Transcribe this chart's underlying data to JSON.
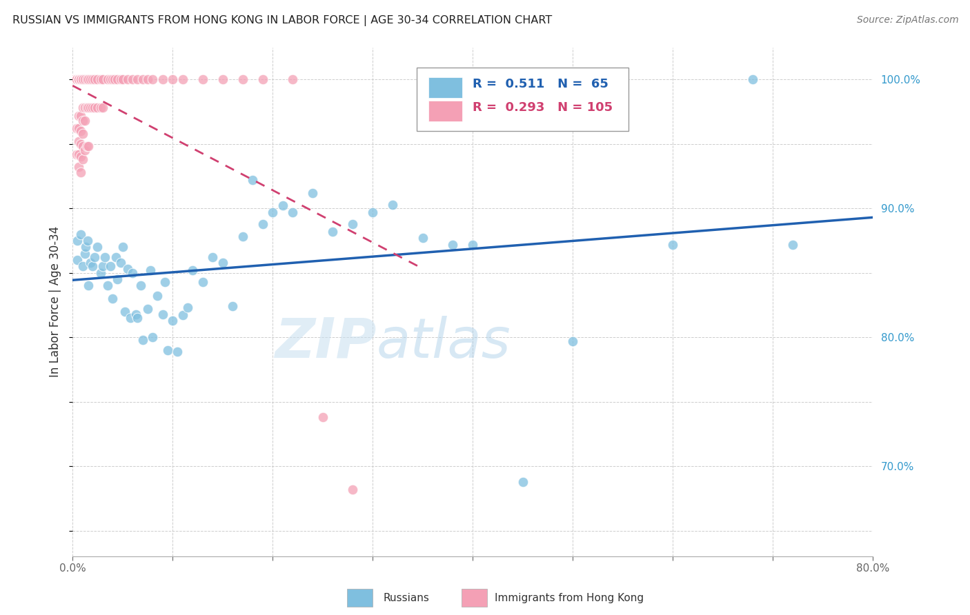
{
  "title": "RUSSIAN VS IMMIGRANTS FROM HONG KONG IN LABOR FORCE | AGE 30-34 CORRELATION CHART",
  "source": "Source: ZipAtlas.com",
  "ylabel": "In Labor Force | Age 30-34",
  "watermark": "ZIPatlas",
  "xlim": [
    0.0,
    0.8
  ],
  "ylim": [
    0.63,
    1.025
  ],
  "R_blue": 0.511,
  "N_blue": 65,
  "R_pink": 0.293,
  "N_pink": 105,
  "blue_color": "#7fbfdf",
  "pink_color": "#f4a0b5",
  "trendline_blue_color": "#2060b0",
  "trendline_pink_color": "#d04070",
  "blue_scatter_x": [
    0.005,
    0.005,
    0.008,
    0.01,
    0.012,
    0.013,
    0.015,
    0.016,
    0.018,
    0.02,
    0.022,
    0.025,
    0.028,
    0.03,
    0.032,
    0.035,
    0.038,
    0.04,
    0.043,
    0.045,
    0.048,
    0.05,
    0.052,
    0.055,
    0.058,
    0.06,
    0.063,
    0.065,
    0.068,
    0.07,
    0.075,
    0.078,
    0.08,
    0.085,
    0.09,
    0.092,
    0.095,
    0.1,
    0.105,
    0.11,
    0.115,
    0.12,
    0.13,
    0.14,
    0.15,
    0.16,
    0.17,
    0.18,
    0.19,
    0.2,
    0.21,
    0.22,
    0.24,
    0.26,
    0.28,
    0.3,
    0.32,
    0.35,
    0.38,
    0.4,
    0.45,
    0.5,
    0.6,
    0.68,
    0.72
  ],
  "blue_scatter_y": [
    0.86,
    0.875,
    0.88,
    0.855,
    0.865,
    0.87,
    0.875,
    0.84,
    0.858,
    0.855,
    0.862,
    0.87,
    0.85,
    0.855,
    0.862,
    0.84,
    0.855,
    0.83,
    0.862,
    0.845,
    0.858,
    0.87,
    0.82,
    0.853,
    0.815,
    0.85,
    0.818,
    0.815,
    0.84,
    0.798,
    0.822,
    0.852,
    0.8,
    0.832,
    0.818,
    0.843,
    0.79,
    0.813,
    0.789,
    0.817,
    0.823,
    0.852,
    0.843,
    0.862,
    0.858,
    0.824,
    0.878,
    0.922,
    0.888,
    0.897,
    0.902,
    0.897,
    0.912,
    0.882,
    0.888,
    0.897,
    0.903,
    0.877,
    0.872,
    0.872,
    0.688,
    0.797,
    0.872,
    1.0,
    0.872
  ],
  "pink_scatter_x": [
    0.002,
    0.002,
    0.002,
    0.002,
    0.002,
    0.002,
    0.002,
    0.002,
    0.002,
    0.002,
    0.002,
    0.002,
    0.002,
    0.002,
    0.002,
    0.002,
    0.002,
    0.002,
    0.002,
    0.002,
    0.004,
    0.004,
    0.004,
    0.004,
    0.004,
    0.004,
    0.004,
    0.004,
    0.004,
    0.004,
    0.004,
    0.004,
    0.004,
    0.004,
    0.006,
    0.006,
    0.006,
    0.006,
    0.006,
    0.006,
    0.006,
    0.006,
    0.006,
    0.006,
    0.006,
    0.008,
    0.008,
    0.008,
    0.008,
    0.008,
    0.008,
    0.008,
    0.008,
    0.01,
    0.01,
    0.01,
    0.01,
    0.01,
    0.01,
    0.01,
    0.012,
    0.012,
    0.012,
    0.012,
    0.014,
    0.014,
    0.014,
    0.016,
    0.016,
    0.016,
    0.018,
    0.018,
    0.02,
    0.02,
    0.022,
    0.022,
    0.025,
    0.025,
    0.028,
    0.028,
    0.03,
    0.03,
    0.035,
    0.038,
    0.04,
    0.042,
    0.045,
    0.048,
    0.05,
    0.055,
    0.06,
    0.065,
    0.07,
    0.075,
    0.08,
    0.09,
    0.1,
    0.11,
    0.13,
    0.15,
    0.17,
    0.19,
    0.22,
    0.25,
    0.28
  ],
  "pink_scatter_y": [
    1.0,
    1.0,
    1.0,
    1.0,
    1.0,
    1.0,
    1.0,
    1.0,
    1.0,
    1.0,
    1.0,
    1.0,
    1.0,
    1.0,
    1.0,
    1.0,
    1.0,
    1.0,
    1.0,
    1.0,
    1.0,
    1.0,
    1.0,
    1.0,
    1.0,
    1.0,
    1.0,
    1.0,
    1.0,
    1.0,
    1.0,
    1.0,
    0.962,
    0.942,
    1.0,
    1.0,
    1.0,
    1.0,
    1.0,
    1.0,
    0.972,
    0.962,
    0.952,
    0.942,
    0.932,
    1.0,
    1.0,
    1.0,
    0.972,
    0.96,
    0.95,
    0.94,
    0.928,
    1.0,
    1.0,
    0.978,
    0.968,
    0.958,
    0.948,
    0.938,
    1.0,
    0.978,
    0.968,
    0.945,
    1.0,
    0.978,
    0.948,
    1.0,
    0.978,
    0.948,
    1.0,
    0.978,
    1.0,
    0.978,
    1.0,
    0.978,
    1.0,
    0.978,
    1.0,
    0.978,
    1.0,
    0.978,
    1.0,
    1.0,
    1.0,
    1.0,
    1.0,
    1.0,
    1.0,
    1.0,
    1.0,
    1.0,
    1.0,
    1.0,
    1.0,
    1.0,
    1.0,
    1.0,
    1.0,
    1.0,
    1.0,
    1.0,
    1.0,
    0.738,
    0.682
  ]
}
